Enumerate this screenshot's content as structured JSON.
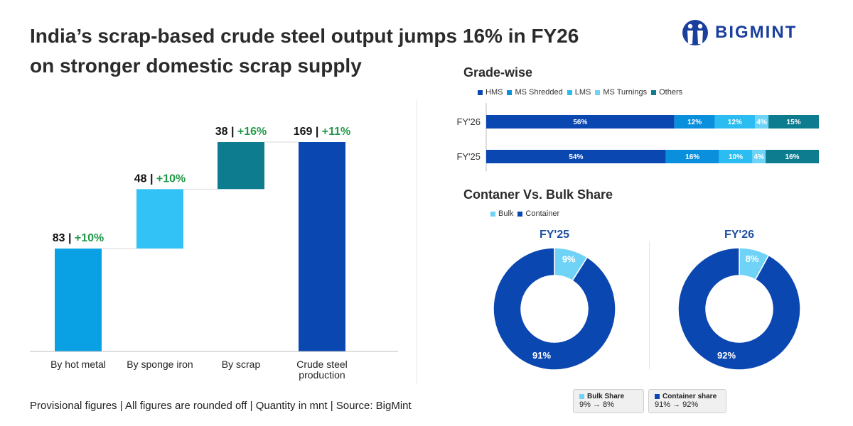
{
  "title": {
    "line1": "India’s scrap-based crude steel output jumps 16% in FY26",
    "line2": "on stronger domestic scrap supply"
  },
  "logo": {
    "text": "BIGMINT",
    "icon": "bigmint-people-logo-icon",
    "color": "#1b3f9c"
  },
  "footer": "Provisional figures | All figures are rounded off | Quantity in mnt | Source: BigMint",
  "colors": {
    "hot_metal": "#0aa1e4",
    "sponge_iron": "#33c2f5",
    "scrap": "#0e7c8f",
    "crude": "#0b47b0",
    "growth": "#22994a",
    "hms": "#0b47b0",
    "ms_shredded": "#0a8fdc",
    "lms": "#2bbcf1",
    "ms_turnings": "#6fd3f7",
    "others": "#0e7c8f",
    "bulk": "#6fd3f7",
    "container": "#0b47b0"
  },
  "chart_data": [
    {
      "type": "bar",
      "subtype": "waterfall",
      "categories": [
        "By hot metal",
        "By sponge iron",
        "By scrap",
        "Crude steel production"
      ],
      "values": [
        83,
        48,
        38,
        169
      ],
      "value_labels": [
        "83",
        "48",
        "38",
        "169"
      ],
      "growth_labels": [
        "+10%",
        "+10%",
        "+16%",
        "+11%"
      ],
      "category_lines": [
        [
          "By hot metal"
        ],
        [
          "By sponge iron"
        ],
        [
          "By scrap"
        ],
        [
          "Crude steel",
          "production"
        ]
      ],
      "ylim": [
        0,
        169
      ]
    },
    {
      "type": "bar",
      "subtype": "stacked-horizontal-100",
      "title": "Grade-wise",
      "categories": [
        "FY'26",
        "FY'25"
      ],
      "series": [
        {
          "name": "HMS",
          "values": [
            56,
            54
          ],
          "labels": [
            "56%",
            "54%"
          ]
        },
        {
          "name": "MS Shredded",
          "values": [
            12,
            16
          ],
          "labels": [
            "12%",
            "16%"
          ]
        },
        {
          "name": "LMS",
          "values": [
            12,
            10
          ],
          "labels": [
            "12%",
            "10%"
          ]
        },
        {
          "name": "MS Turnings",
          "values": [
            4,
            4
          ],
          "labels": [
            "4%",
            "4%"
          ]
        },
        {
          "name": "Others",
          "values": [
            15,
            16
          ],
          "labels": [
            "15%",
            "16%"
          ]
        }
      ],
      "legend_position": "top-left"
    },
    {
      "type": "pie",
      "subtype": "donut",
      "title": "Contaner Vs. Bulk Share",
      "legend": [
        "Bulk",
        "Container"
      ],
      "charts": [
        {
          "title": "FY'25",
          "slices": [
            {
              "name": "Bulk",
              "value": 9,
              "label": "9%"
            },
            {
              "name": "Container",
              "value": 91,
              "label": "91%"
            }
          ]
        },
        {
          "title": "FY'26",
          "slices": [
            {
              "name": "Bulk",
              "value": 8,
              "label": "8%"
            },
            {
              "name": "Container",
              "value": 92,
              "label": "92%"
            }
          ]
        }
      ]
    }
  ],
  "share_boxes": [
    {
      "label": "Bulk Share",
      "value": "9% → 8%",
      "color": "#6fd3f7"
    },
    {
      "label": "Container share",
      "value": "91% → 92%",
      "color": "#0b47b0"
    }
  ]
}
